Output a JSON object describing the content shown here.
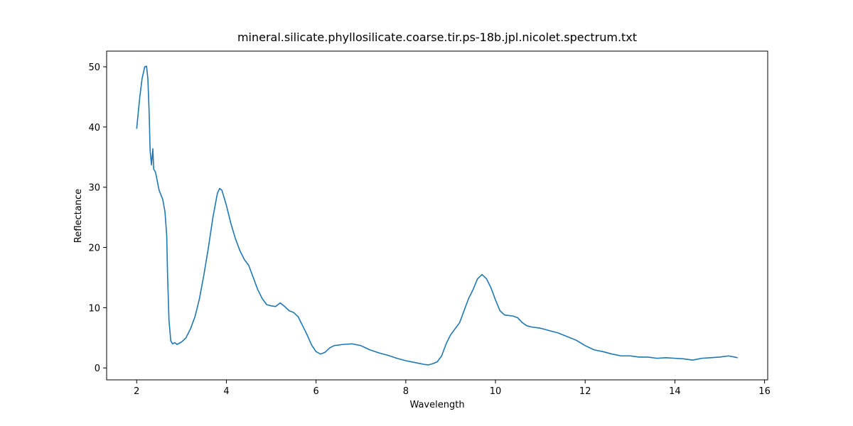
{
  "chart_data": {
    "type": "line",
    "title": "mineral.silicate.phyllosilicate.coarse.tir.ps-18b.jpl.nicolet.spectrum.txt",
    "xlabel": "Wavelength",
    "ylabel": "Reflectance",
    "xlim": [
      1.33,
      16.07
    ],
    "ylim": [
      -1.98,
      52.6
    ],
    "xticks": [
      2,
      4,
      6,
      8,
      10,
      12,
      14,
      16
    ],
    "yticks": [
      0,
      10,
      20,
      30,
      40,
      50
    ],
    "series": [
      {
        "color": "#1f77b4",
        "x": [
          2.0,
          2.03,
          2.07,
          2.12,
          2.18,
          2.22,
          2.25,
          2.28,
          2.3,
          2.33,
          2.36,
          2.38,
          2.42,
          2.5,
          2.58,
          2.63,
          2.67,
          2.69,
          2.7,
          2.72,
          2.76,
          2.8,
          2.85,
          2.9,
          3.0,
          3.1,
          3.2,
          3.3,
          3.4,
          3.5,
          3.6,
          3.7,
          3.8,
          3.85,
          3.9,
          4.0,
          4.1,
          4.2,
          4.3,
          4.4,
          4.5,
          4.6,
          4.7,
          4.8,
          4.9,
          5.0,
          5.1,
          5.2,
          5.3,
          5.4,
          5.5,
          5.6,
          5.7,
          5.8,
          5.9,
          6.0,
          6.1,
          6.2,
          6.3,
          6.4,
          6.6,
          6.8,
          7.0,
          7.2,
          7.4,
          7.6,
          7.8,
          8.0,
          8.2,
          8.4,
          8.5,
          8.6,
          8.7,
          8.8,
          8.9,
          9.0,
          9.1,
          9.2,
          9.3,
          9.4,
          9.5,
          9.6,
          9.7,
          9.8,
          9.9,
          10.0,
          10.1,
          10.2,
          10.4,
          10.5,
          10.6,
          10.7,
          10.8,
          11.0,
          11.2,
          11.4,
          11.6,
          11.8,
          12.0,
          12.2,
          12.4,
          12.6,
          12.8,
          13.0,
          13.2,
          13.4,
          13.6,
          13.8,
          14.0,
          14.2,
          14.4,
          14.6,
          14.8,
          15.0,
          15.2,
          15.4
        ],
        "values": [
          39.7,
          42,
          45,
          48,
          50,
          50.1,
          48,
          42,
          36,
          33.7,
          36.4,
          33,
          32.5,
          29.5,
          28,
          26,
          22,
          15,
          12.8,
          8,
          4.5,
          4,
          4.2,
          3.9,
          4.3,
          5,
          6.5,
          8.5,
          11.5,
          15.5,
          20,
          25,
          29,
          29.8,
          29.5,
          27,
          24,
          21.5,
          19.5,
          18,
          17,
          15,
          13,
          11.5,
          10.5,
          10.3,
          10.2,
          10.8,
          10.2,
          9.5,
          9.2,
          8.5,
          7,
          5.5,
          3.8,
          2.7,
          2.3,
          2.6,
          3.3,
          3.7,
          3.9,
          4.0,
          3.7,
          3.0,
          2.5,
          2.1,
          1.6,
          1.2,
          0.9,
          0.6,
          0.5,
          0.7,
          1.0,
          2.0,
          4.0,
          5.5,
          6.5,
          7.5,
          9.5,
          11.5,
          13,
          14.8,
          15.5,
          14.8,
          13.3,
          11.3,
          9.5,
          8.8,
          8.6,
          8.3,
          7.5,
          7.0,
          6.8,
          6.6,
          6.2,
          5.8,
          5.2,
          4.6,
          3.7,
          3.0,
          2.7,
          2.3,
          2.0,
          2.0,
          1.8,
          1.8,
          1.6,
          1.7,
          1.6,
          1.5,
          1.3,
          1.6,
          1.7,
          1.8,
          2.0,
          1.7
        ]
      }
    ]
  }
}
